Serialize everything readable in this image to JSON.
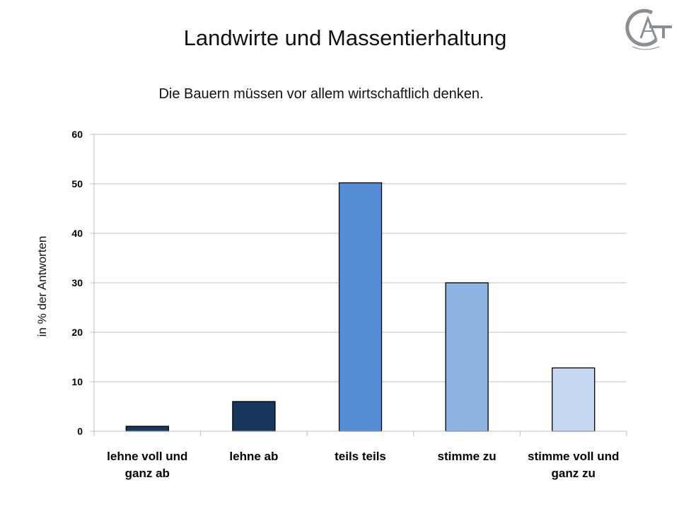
{
  "slide": {
    "title": "Landwirte und Massentierhaltung"
  },
  "chart_data": {
    "type": "bar",
    "title": "Die Bauern müssen vor allem wirtschaftlich denken.",
    "ylabel": "in % der Antworten",
    "xlabel": "",
    "categories": [
      [
        "lehne voll und",
        "ganz ab"
      ],
      [
        "lehne ab"
      ],
      [
        "teils teils"
      ],
      [
        "stimme zu"
      ],
      [
        "stimme voll und",
        "ganz zu"
      ]
    ],
    "values": [
      1,
      6,
      50.2,
      30,
      12.8
    ],
    "colors": [
      "#17375E",
      "#17375E",
      "#558ED5",
      "#8DB3E2",
      "#C6D9F1"
    ],
    "ylim": [
      0,
      60
    ],
    "yticks": [
      0,
      10,
      20,
      30,
      40,
      50,
      60
    ],
    "grid": true
  },
  "logo": {
    "icon": "ga-monogram-seal-icon",
    "color": "#8A8F96"
  }
}
